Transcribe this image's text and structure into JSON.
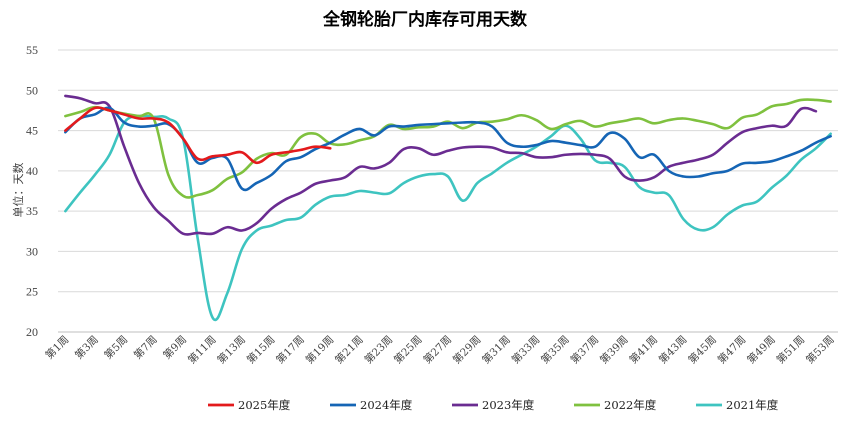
{
  "chart_data": {
    "type": "line",
    "title": "全钢轮胎厂内库存可用天数",
    "ylabel": "单位：天数",
    "ylim": [
      20,
      55
    ],
    "yticks": [
      20,
      25,
      30,
      35,
      40,
      45,
      50,
      55
    ],
    "grid": true,
    "legend_position": "bottom",
    "x_categories": [
      "第1周",
      "第2周",
      "第3周",
      "第4周",
      "第5周",
      "第6周",
      "第7周",
      "第8周",
      "第9周",
      "第10周",
      "第11周",
      "第12周",
      "第13周",
      "第14周",
      "第15周",
      "第16周",
      "第17周",
      "第18周",
      "第19周",
      "第20周",
      "第21周",
      "第22周",
      "第23周",
      "第24周",
      "第25周",
      "第26周",
      "第27周",
      "第28周",
      "第29周",
      "第30周",
      "第31周",
      "第32周",
      "第33周",
      "第34周",
      "第35周",
      "第36周",
      "第37周",
      "第38周",
      "第39周",
      "第40周",
      "第41周",
      "第42周",
      "第43周",
      "第44周",
      "第45周",
      "第46周",
      "第47周",
      "第48周",
      "第49周",
      "第50周",
      "第51周",
      "第52周",
      "第53周"
    ],
    "x_tick_labels": [
      "第1周",
      "第3周",
      "第5周",
      "第7周",
      "第9周",
      "第11周",
      "第13周",
      "第15周",
      "第17周",
      "第19周",
      "第21周",
      "第23周",
      "第25周",
      "第27周",
      "第29周",
      "第31周",
      "第33周",
      "第35周",
      "第37周",
      "第39周",
      "第41周",
      "第43周",
      "第45周",
      "第47周",
      "第49周",
      "第51周",
      "第53周"
    ],
    "series": [
      {
        "name": "2025年度",
        "color": "#e31a1c",
        "values": [
          45.0,
          46.5,
          47.8,
          47.5,
          47.0,
          46.5,
          46.5,
          46.0,
          44.0,
          41.5,
          41.8,
          42.0,
          42.3,
          41.0,
          42.0,
          42.3,
          42.6,
          43.0,
          42.8
        ]
      },
      {
        "name": "2024年度",
        "color": "#1565b5",
        "values": [
          44.8,
          46.5,
          47.0,
          47.8,
          46.0,
          45.5,
          45.6,
          45.8,
          44.0,
          41.0,
          41.6,
          41.5,
          37.8,
          38.5,
          39.5,
          41.2,
          41.7,
          42.7,
          43.5,
          44.5,
          45.2,
          44.4,
          45.5,
          45.5,
          45.7,
          45.8,
          45.9,
          46.0,
          46.0,
          45.5,
          43.5,
          43.0,
          43.2,
          43.7,
          43.5,
          43.2,
          43.0,
          44.7,
          44.0,
          41.7,
          42.0,
          40.0,
          39.3,
          39.3,
          39.7,
          40.0,
          40.9,
          41.0,
          41.2,
          41.8,
          42.5,
          43.5,
          44.3
        ]
      },
      {
        "name": "2023年度",
        "color": "#6a2c91",
        "values": [
          49.3,
          49.0,
          48.4,
          48.0,
          43.0,
          38.5,
          35.5,
          33.8,
          32.2,
          32.3,
          32.2,
          33.0,
          32.6,
          33.5,
          35.3,
          36.5,
          37.3,
          38.4,
          38.8,
          39.2,
          40.5,
          40.3,
          41.0,
          42.7,
          42.8,
          42.0,
          42.5,
          42.9,
          43.0,
          42.9,
          42.3,
          42.2,
          41.7,
          41.7,
          42.0,
          42.1,
          42.0,
          41.5,
          39.3,
          38.8,
          39.2,
          40.5,
          41.0,
          41.4,
          42.0,
          43.5,
          44.8,
          45.3,
          45.6,
          45.6,
          47.7,
          47.4
        ]
      },
      {
        "name": "2022年度",
        "color": "#7fc13f",
        "values": [
          46.8,
          47.3,
          47.9,
          47.5,
          47.1,
          46.8,
          46.5,
          39.5,
          36.9,
          37.0,
          37.6,
          39.0,
          39.8,
          41.5,
          42.2,
          42.0,
          44.2,
          44.6,
          43.4,
          43.3,
          43.8,
          44.3,
          45.7,
          45.2,
          45.4,
          45.5,
          46.1,
          45.3,
          46.0,
          46.1,
          46.4,
          46.9,
          46.3,
          45.2,
          45.8,
          46.2,
          45.5,
          45.9,
          46.2,
          46.5,
          45.9,
          46.3,
          46.5,
          46.2,
          45.8,
          45.3,
          46.6,
          47.0,
          48.0,
          48.3,
          48.8,
          48.8,
          48.6
        ]
      },
      {
        "name": "2021年度",
        "color": "#3ec4c0",
        "values": [
          35.0,
          37.3,
          39.5,
          42.0,
          46.0,
          46.8,
          46.7,
          46.5,
          44.0,
          31.5,
          21.8,
          24.8,
          30.3,
          32.6,
          33.2,
          33.9,
          34.2,
          35.8,
          36.8,
          37.0,
          37.5,
          37.3,
          37.2,
          38.5,
          39.3,
          39.6,
          39.3,
          36.3,
          38.5,
          39.7,
          41.0,
          42.0,
          43.0,
          44.3,
          45.6,
          44.0,
          41.3,
          41.0,
          40.5,
          38.0,
          37.3,
          37.0,
          34.0,
          32.7,
          33.0,
          34.6,
          35.7,
          36.2,
          37.9,
          39.4,
          41.4,
          42.8,
          44.6
        ]
      }
    ]
  }
}
